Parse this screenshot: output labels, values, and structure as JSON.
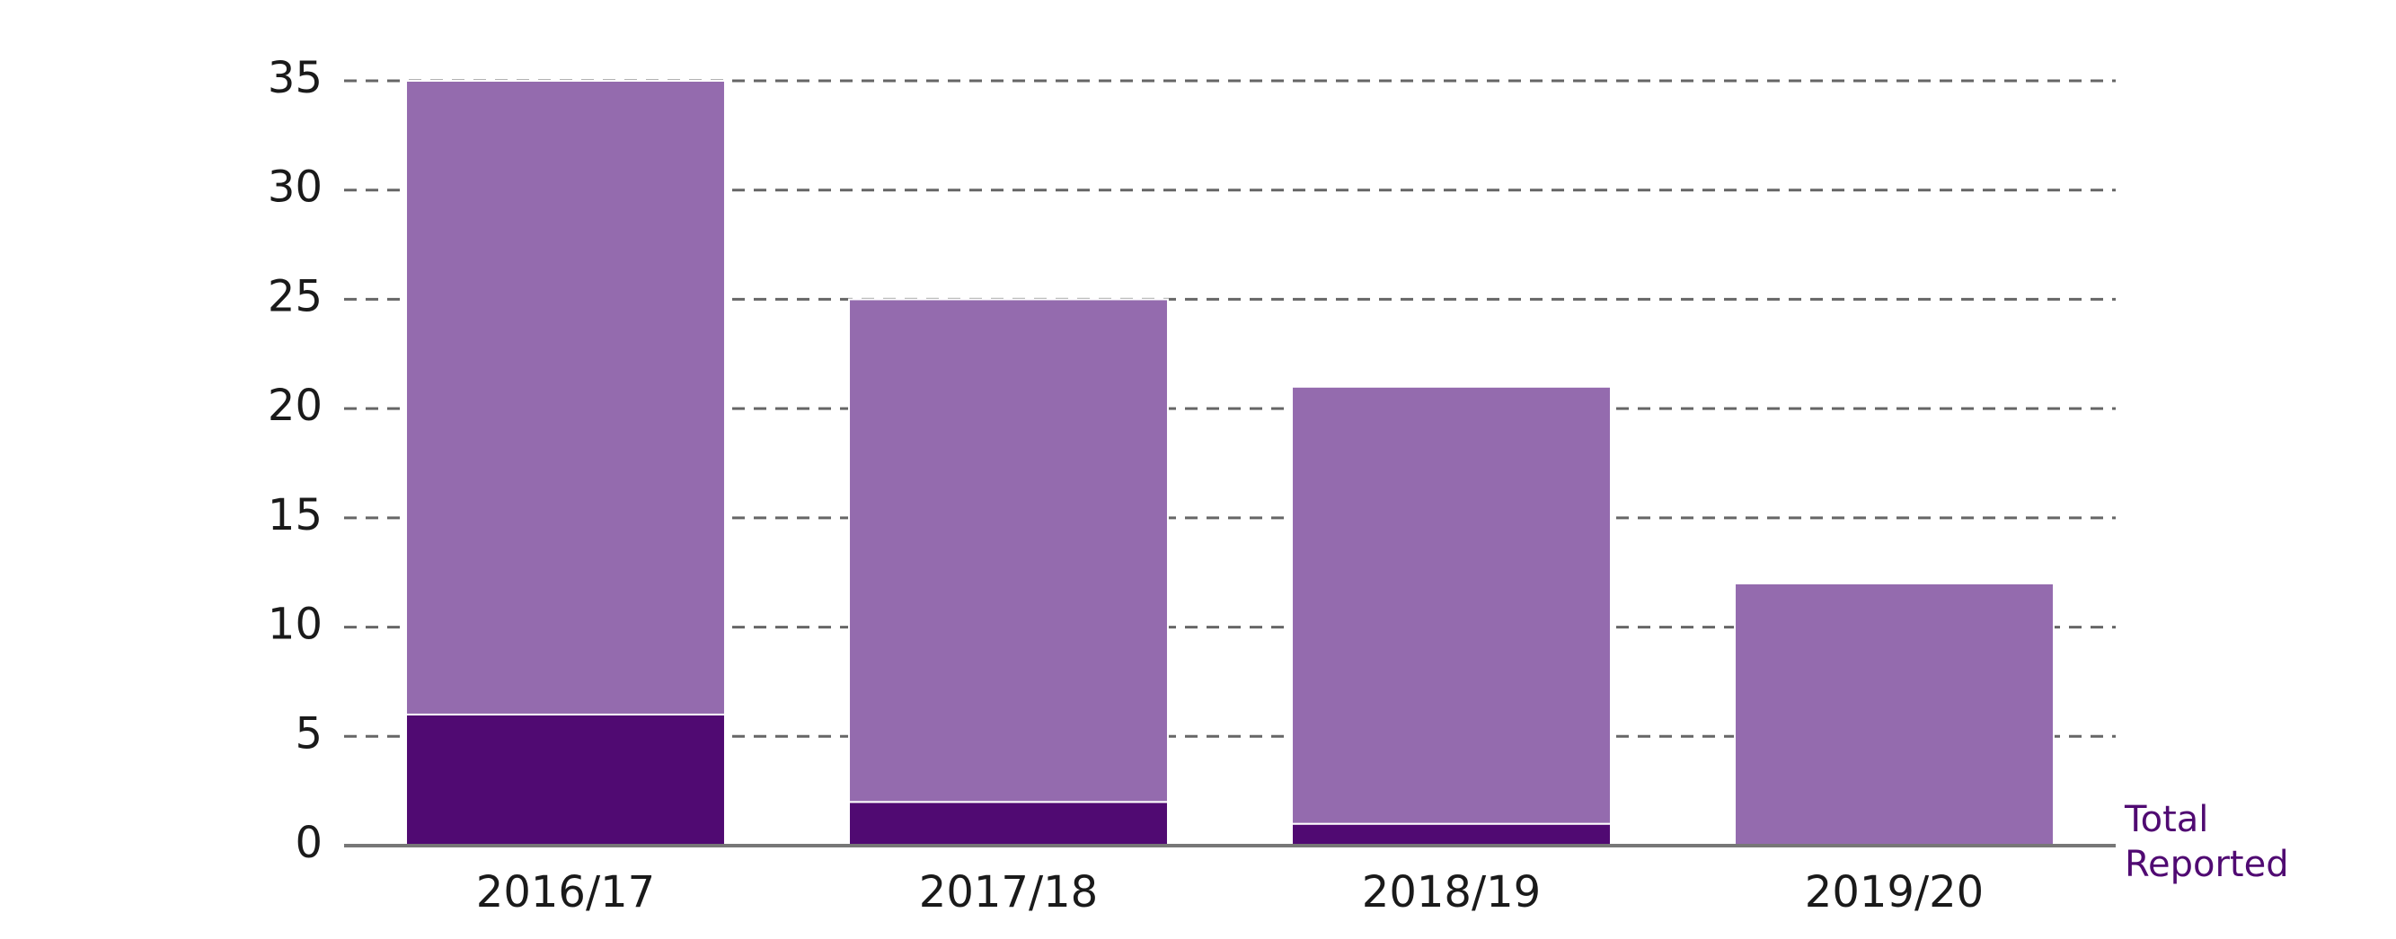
{
  "chart_data": {
    "type": "stacked-bar",
    "categories": [
      "2016/17",
      "2017/18",
      "2018/19",
      "2019/20"
    ],
    "series": [
      {
        "name": "Total Reported",
        "color": "#500a72",
        "values": [
          6,
          2,
          1,
          0
        ]
      },
      {
        "color": "#946bae",
        "values": [
          29,
          23,
          20,
          12
        ]
      }
    ],
    "ylim": [
      0,
      35
    ],
    "yticks": [
      0,
      5,
      10,
      15,
      20,
      25,
      30,
      35
    ],
    "grid": true
  }
}
